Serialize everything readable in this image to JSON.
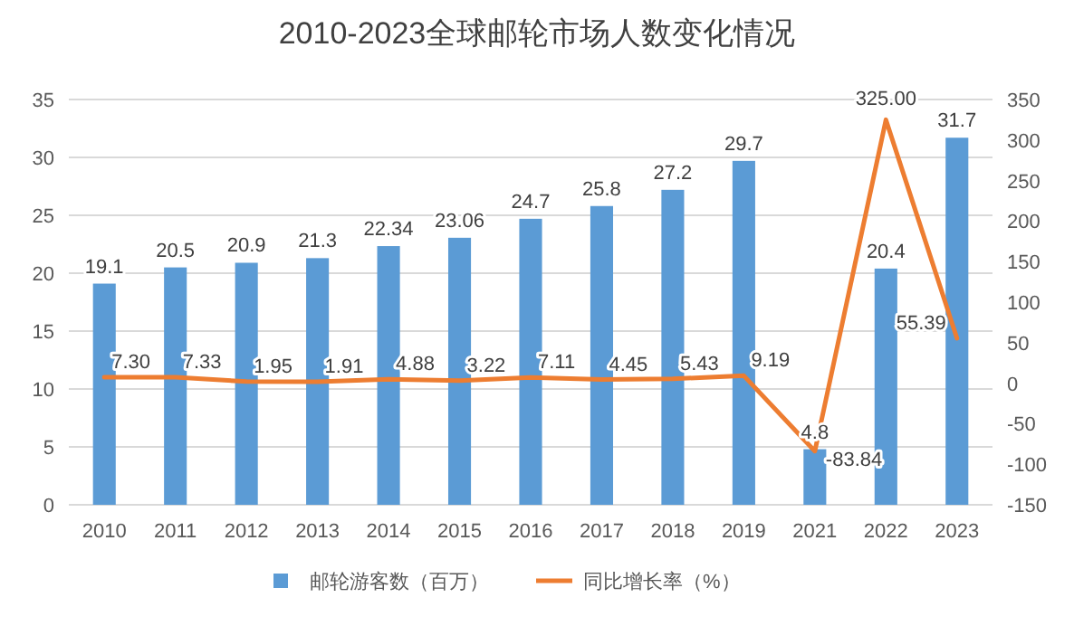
{
  "chart_data": {
    "type": "bar",
    "title": "2010-2023全球邮轮市场人数变化情况",
    "categories": [
      "2010",
      "2011",
      "2012",
      "2013",
      "2014",
      "2015",
      "2016",
      "2017",
      "2018",
      "2019",
      "2021",
      "2022",
      "2023"
    ],
    "series": [
      {
        "name": "邮轮游客数（百万）",
        "color": "#5b9bd5",
        "values": [
          19.1,
          20.5,
          20.9,
          21.3,
          22.34,
          23.06,
          24.7,
          25.8,
          27.2,
          29.7,
          4.8,
          20.4,
          31.7
        ],
        "value_labels": [
          "19.1",
          "20.5",
          "20.9",
          "21.3",
          "22.34",
          "23.06",
          "24.7",
          "25.8",
          "27.2",
          "29.7",
          "4.8",
          "20.4",
          "31.7"
        ]
      },
      {
        "name": "同比增长率（%）",
        "type": "line",
        "axis": "y2",
        "color": "#ed7d31",
        "values": [
          7.3,
          7.33,
          1.95,
          1.91,
          4.88,
          3.22,
          7.11,
          4.45,
          5.43,
          9.19,
          -83.84,
          325.0,
          55.39
        ],
        "value_labels": [
          "7.30",
          "7.33",
          "1.95",
          "1.91",
          "4.88",
          "3.22",
          "7.11",
          "4.45",
          "5.43",
          "9.19",
          "-83.84",
          "325.00",
          "55.39"
        ]
      }
    ],
    "ylim": [
      0,
      35
    ],
    "yticks": [
      0,
      5,
      10,
      15,
      20,
      25,
      30,
      35
    ],
    "y2lim": [
      -150,
      350
    ],
    "y2ticks": [
      -150,
      -100,
      -50,
      0,
      50,
      100,
      150,
      200,
      250,
      300,
      350
    ],
    "grid": "y",
    "legend": "bottom"
  }
}
